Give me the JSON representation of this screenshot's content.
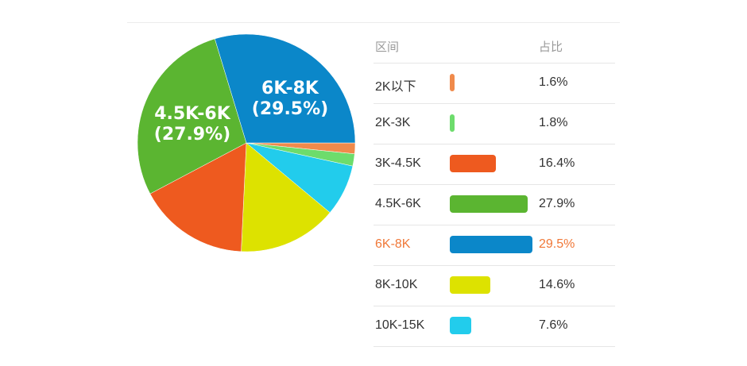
{
  "chart_data": {
    "type": "pie",
    "table_headers": {
      "range": "区间",
      "share": "占比"
    },
    "categories": [
      "2K以下",
      "2K-3K",
      "3K-4.5K",
      "4.5K-6K",
      "6K-8K",
      "8K-10K",
      "10K-15K"
    ],
    "values": [
      1.6,
      1.8,
      16.4,
      27.9,
      29.5,
      14.6,
      7.6
    ],
    "value_labels": [
      "1.6%",
      "1.8%",
      "16.4%",
      "27.9%",
      "29.5%",
      "14.6%",
      "7.6%"
    ],
    "colors": [
      "#f08a4b",
      "#6ddc6c",
      "#ee5a1f",
      "#5bb531",
      "#0b87c9",
      "#dde200",
      "#22ccec"
    ],
    "highlighted": "6K-8K",
    "highlight_color": "#f07838",
    "slice_labels": [
      {
        "category": "4.5K-6K",
        "line1": "4.5K-6K",
        "line2": "(27.9%)"
      },
      {
        "category": "6K-8K",
        "line1": "6K-8K",
        "line2": "(29.5%)"
      }
    ]
  }
}
